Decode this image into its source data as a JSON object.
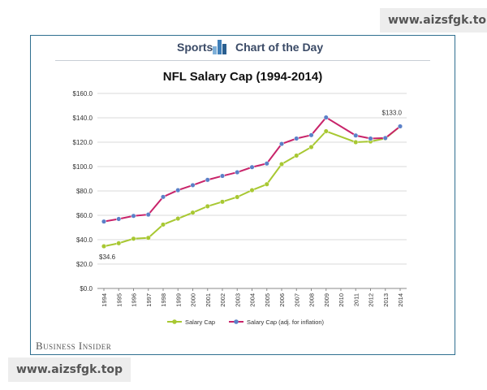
{
  "header": {
    "left_label": "Sports",
    "right_label": "Chart of the Day"
  },
  "publisher": "Business Insider",
  "watermark": "www.aizsfgk.top",
  "colors": {
    "salary_cap": "#a8c832",
    "adjusted": "#c8246a",
    "adjusted_marker": "#5b80c8",
    "frame": "#2f6f8f"
  },
  "chart_data": {
    "type": "line",
    "title": "NFL Salary Cap (1994-2014)",
    "x": [
      "1994",
      "1995",
      "1996",
      "1997",
      "1998",
      "1999",
      "2000",
      "2001",
      "2002",
      "2003",
      "2004",
      "2005",
      "2006",
      "2007",
      "2008",
      "2009",
      "2010",
      "2011",
      "2012",
      "2013",
      "2014"
    ],
    "ylim": [
      0,
      160
    ],
    "yticks": [
      "$0.0",
      "$20.0",
      "$40.0",
      "$60.0",
      "$80.0",
      "$100.0",
      "$120.0",
      "$140.0",
      "$160.0"
    ],
    "grid": true,
    "legend": "bottom",
    "series": [
      {
        "name": "Salary Cap",
        "values": [
          34.6,
          37.1,
          40.8,
          41.5,
          52.4,
          57.3,
          62.2,
          67.4,
          71.1,
          75.0,
          80.6,
          85.5,
          102.0,
          109.0,
          116.0,
          129.0,
          null,
          120.0,
          120.6,
          123.0,
          133.0
        ]
      },
      {
        "name": "Salary Cap (adj. for inflation)",
        "values": [
          54.9,
          57.0,
          59.5,
          60.6,
          75.1,
          80.6,
          84.7,
          89.1,
          92.3,
          95.3,
          99.5,
          102.5,
          118.6,
          123.0,
          125.8,
          140.3,
          null,
          125.5,
          123.0,
          123.4,
          133.0
        ]
      }
    ],
    "annotations": [
      "$34.6",
      "$133.0"
    ]
  }
}
